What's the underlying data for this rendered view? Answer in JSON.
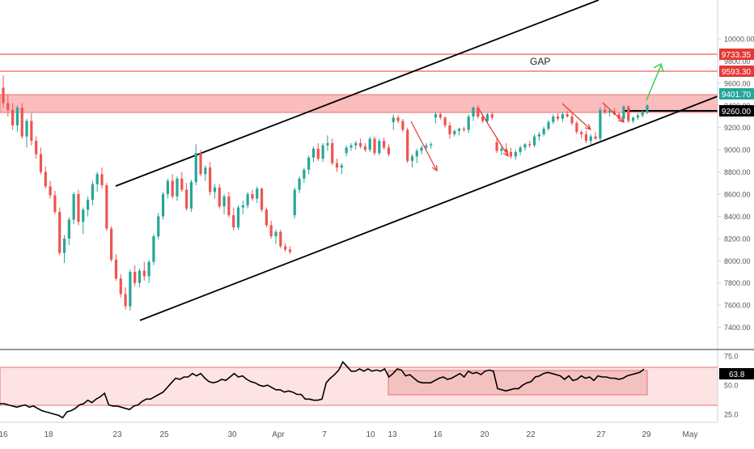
{
  "chart_data": [
    {
      "type": "candlestick",
      "title": "",
      "xlabel": "",
      "ylabel": "",
      "ylim": [
        7200,
        10350
      ],
      "grid": false,
      "x_ticks": [
        "16",
        "18",
        "23",
        "25",
        "30",
        "Apr",
        "7",
        "10",
        "13",
        "16",
        "20",
        "22",
        "27",
        "29",
        "May"
      ],
      "y_ticks": [
        7400,
        7600,
        7800,
        8000,
        8200,
        8400,
        8600,
        8800,
        9000,
        9200,
        9400,
        9600,
        9800,
        10000
      ],
      "price_labels": [
        "9733.35",
        "9593.30",
        "9401.70",
        "9260.00"
      ],
      "annotations": [
        "GAP"
      ],
      "colors": {
        "up": "#26a69a",
        "down": "#ef5350",
        "zone": "#f8a5a5",
        "line": "#e53935",
        "last_price": "#26a69a",
        "target": "#2ecc40"
      },
      "candles": [
        [
          9560,
          9670,
          9380,
          9420
        ],
        [
          9420,
          9500,
          9300,
          9360
        ],
        [
          9360,
          9420,
          9180,
          9220
        ],
        [
          9220,
          9400,
          9160,
          9380
        ],
        [
          9380,
          9420,
          9100,
          9120
        ],
        [
          9120,
          9280,
          9020,
          9260
        ],
        [
          9260,
          9330,
          9040,
          9080
        ],
        [
          9080,
          9120,
          8920,
          8960
        ],
        [
          8960,
          9020,
          8780,
          8800
        ],
        [
          8800,
          8850,
          8650,
          8670
        ],
        [
          8670,
          8720,
          8560,
          8590
        ],
        [
          8590,
          8630,
          8420,
          8440
        ],
        [
          8440,
          8480,
          8050,
          8070
        ],
        [
          8070,
          8230,
          7980,
          8200
        ],
        [
          8200,
          8390,
          8140,
          8370
        ],
        [
          8370,
          8620,
          8330,
          8600
        ],
        [
          8600,
          8640,
          8320,
          8350
        ],
        [
          8350,
          8480,
          8240,
          8460
        ],
        [
          8460,
          8580,
          8400,
          8550
        ],
        [
          8550,
          8720,
          8500,
          8690
        ],
        [
          8690,
          8800,
          8620,
          8780
        ],
        [
          8780,
          8840,
          8650,
          8680
        ],
        [
          8680,
          8700,
          8270,
          8290
        ],
        [
          8290,
          8310,
          7990,
          8010
        ],
        [
          8010,
          8060,
          7820,
          7840
        ],
        [
          7840,
          7880,
          7670,
          7700
        ],
        [
          7700,
          7760,
          7560,
          7590
        ],
        [
          7590,
          7920,
          7550,
          7900
        ],
        [
          7900,
          7960,
          7770,
          7800
        ],
        [
          7800,
          7930,
          7760,
          7910
        ],
        [
          7910,
          7990,
          7820,
          7860
        ],
        [
          7860,
          8010,
          7800,
          7990
        ],
        [
          7990,
          8240,
          7960,
          8220
        ],
        [
          8220,
          8430,
          8190,
          8400
        ],
        [
          8400,
          8620,
          8370,
          8600
        ],
        [
          8600,
          8740,
          8560,
          8720
        ],
        [
          8720,
          8780,
          8560,
          8580
        ],
        [
          8580,
          8760,
          8540,
          8740
        ],
        [
          8740,
          8800,
          8620,
          8640
        ],
        [
          8640,
          8700,
          8450,
          8470
        ],
        [
          8470,
          8730,
          8440,
          8710
        ],
        [
          8710,
          9050,
          8680,
          8970
        ],
        [
          8970,
          9000,
          8760,
          8780
        ],
        [
          8780,
          8860,
          8720,
          8840
        ],
        [
          8840,
          8890,
          8590,
          8620
        ],
        [
          8620,
          8690,
          8560,
          8660
        ],
        [
          8660,
          8690,
          8470,
          8490
        ],
        [
          8490,
          8600,
          8420,
          8580
        ],
        [
          8580,
          8620,
          8390,
          8410
        ],
        [
          8410,
          8480,
          8270,
          8300
        ],
        [
          8300,
          8500,
          8280,
          8480
        ],
        [
          8480,
          8540,
          8420,
          8500
        ],
        [
          8500,
          8620,
          8470,
          8600
        ],
        [
          8600,
          8640,
          8540,
          8560
        ],
        [
          8560,
          8670,
          8520,
          8650
        ],
        [
          8650,
          8660,
          8440,
          8460
        ],
        [
          8460,
          8480,
          8300,
          8320
        ],
        [
          8320,
          8360,
          8200,
          8220
        ],
        [
          8220,
          8280,
          8150,
          8260
        ],
        [
          8260,
          8280,
          8110,
          8130
        ],
        [
          8130,
          8160,
          8080,
          8100
        ],
        [
          8100,
          8130,
          8060,
          8080
        ],
        [
          8410,
          8660,
          8380,
          8640
        ],
        [
          8640,
          8760,
          8610,
          8740
        ],
        [
          8740,
          8840,
          8700,
          8820
        ],
        [
          8820,
          8950,
          8780,
          8930
        ],
        [
          8930,
          9030,
          8890,
          9010
        ],
        [
          9010,
          9060,
          8900,
          8920
        ],
        [
          8920,
          9060,
          8890,
          9040
        ],
        [
          9040,
          9130,
          8990,
          9060
        ],
        [
          9060,
          9100,
          8860,
          8880
        ],
        [
          8880,
          8920,
          8800,
          8840
        ],
        [
          8840,
          8880,
          8780,
          8860
        ],
        [
          8970,
          9040,
          8940,
          9020
        ],
        [
          9020,
          9060,
          8990,
          9040
        ],
        [
          9040,
          9080,
          9000,
          9060
        ],
        [
          9060,
          9100,
          9010,
          9030
        ],
        [
          9030,
          9060,
          8980,
          9000
        ],
        [
          9000,
          9120,
          8980,
          9100
        ],
        [
          9100,
          9120,
          8950,
          8970
        ],
        [
          8970,
          9100,
          8950,
          9080
        ],
        [
          9080,
          9110,
          9000,
          9020
        ],
        [
          9020,
          9050,
          8940,
          8960
        ],
        [
          9250,
          9320,
          9180,
          9290
        ],
        [
          9290,
          9310,
          9240,
          9260
        ],
        [
          9260,
          9280,
          9160,
          9180
        ],
        [
          9180,
          9200,
          8880,
          8900
        ],
        [
          8900,
          8960,
          8840,
          8940
        ],
        [
          8940,
          9010,
          8880,
          8990
        ],
        [
          8990,
          9040,
          8960,
          9020
        ],
        [
          9020,
          9060,
          9000,
          9040
        ],
        [
          9040,
          9070,
          9010,
          9050
        ],
        [
          9290,
          9340,
          9240,
          9320
        ],
        [
          9320,
          9340,
          9270,
          9290
        ],
        [
          9290,
          9300,
          9200,
          9220
        ],
        [
          9220,
          9250,
          9100,
          9140
        ],
        [
          9140,
          9180,
          9120,
          9170
        ],
        [
          9170,
          9200,
          9130,
          9190
        ],
        [
          9190,
          9210,
          9160,
          9180
        ],
        [
          9180,
          9320,
          9150,
          9300
        ],
        [
          9300,
          9390,
          9260,
          9380
        ],
        [
          9380,
          9400,
          9280,
          9300
        ],
        [
          9300,
          9320,
          9240,
          9260
        ],
        [
          9260,
          9330,
          9240,
          9320
        ],
        [
          9320,
          9340,
          9270,
          9290
        ],
        [
          9070,
          9100,
          8970,
          8990
        ],
        [
          8990,
          9030,
          8950,
          9010
        ],
        [
          9010,
          9060,
          8970,
          8980
        ],
        [
          8980,
          9020,
          8920,
          8940
        ],
        [
          8940,
          9000,
          8910,
          8980
        ],
        [
          8980,
          9040,
          8950,
          9020
        ],
        [
          9020,
          9060,
          8990,
          9050
        ],
        [
          9050,
          9080,
          9020,
          9040
        ],
        [
          9040,
          9140,
          9020,
          9120
        ],
        [
          9120,
          9160,
          9080,
          9140
        ],
        [
          9140,
          9210,
          9120,
          9190
        ],
        [
          9190,
          9270,
          9170,
          9250
        ],
        [
          9250,
          9320,
          9230,
          9300
        ],
        [
          9300,
          9330,
          9260,
          9280
        ],
        [
          9280,
          9340,
          9250,
          9320
        ],
        [
          9320,
          9350,
          9290,
          9300
        ],
        [
          9300,
          9330,
          9220,
          9240
        ],
        [
          9240,
          9260,
          9140,
          9160
        ],
        [
          9160,
          9180,
          9100,
          9140
        ],
        [
          9140,
          9170,
          9060,
          9080
        ],
        [
          9080,
          9140,
          9050,
          9120
        ],
        [
          9120,
          9160,
          9090,
          9100
        ],
        [
          9100,
          9380,
          9080,
          9360
        ],
        [
          9360,
          9400,
          9320,
          9340
        ],
        [
          9340,
          9370,
          9300,
          9350
        ],
        [
          9350,
          9380,
          9310,
          9320
        ],
        [
          9320,
          9340,
          9260,
          9280
        ],
        [
          9280,
          9400,
          9260,
          9390
        ],
        [
          9390,
          9400,
          9240,
          9260
        ],
        [
          9260,
          9300,
          9240,
          9290
        ],
        [
          9290,
          9330,
          9270,
          9310
        ],
        [
          9310,
          9360,
          9290,
          9340
        ],
        [
          9340,
          9410,
          9320,
          9400
        ]
      ]
    },
    {
      "type": "line",
      "title": "",
      "name": "",
      "ylim": [
        18,
        80
      ],
      "y_ticks": [
        25.0,
        50.0,
        75.0
      ],
      "last_value": "63.8",
      "values": [
        34,
        34,
        33,
        32,
        31,
        32,
        33,
        31,
        32,
        30,
        28,
        27,
        26,
        25,
        24,
        22,
        27,
        28,
        30,
        33,
        34,
        37,
        35,
        38,
        40,
        43,
        33,
        32,
        32,
        31,
        30,
        29,
        32,
        33,
        36,
        38,
        38,
        40,
        42,
        44,
        48,
        52,
        56,
        55,
        57,
        57,
        60,
        58,
        60,
        56,
        53,
        52,
        53,
        55,
        54,
        57,
        60,
        57,
        58,
        55,
        53,
        52,
        50,
        49,
        50,
        48,
        46,
        46,
        44,
        45,
        44,
        42,
        42,
        38,
        38,
        37,
        37,
        38,
        52,
        56,
        59,
        63,
        70,
        66,
        62,
        62,
        64,
        62,
        64,
        62,
        63,
        62,
        64,
        57,
        60,
        64,
        63,
        58,
        59,
        56,
        53,
        52,
        52,
        52,
        54,
        56,
        57,
        55,
        56,
        58,
        60,
        57,
        62,
        60,
        61,
        59,
        62,
        63,
        62,
        47,
        46,
        45,
        46,
        47,
        47,
        50,
        52,
        53,
        57,
        58,
        60,
        61,
        60,
        59,
        58,
        55,
        58,
        54,
        55,
        58,
        56,
        57,
        54,
        58,
        57,
        57,
        56,
        56,
        55,
        56,
        58,
        59,
        60,
        61,
        63.8
      ]
    }
  ]
}
